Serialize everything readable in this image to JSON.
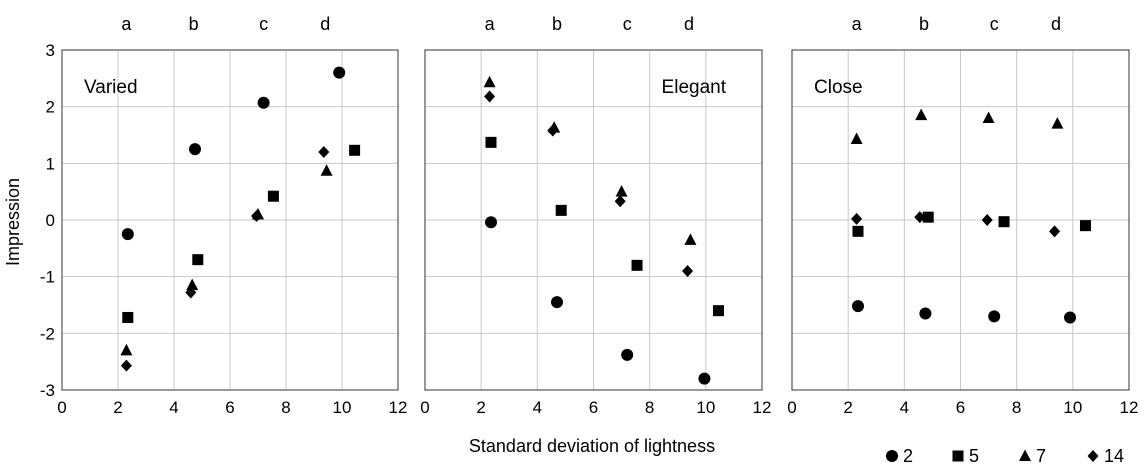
{
  "figure": {
    "ylabel": "Impression",
    "xlabel": "Standard deviation of lightness",
    "legend": [
      {
        "symbol": "circle",
        "label": "2"
      },
      {
        "symbol": "square",
        "label": "5"
      },
      {
        "symbol": "triangle",
        "label": "7"
      },
      {
        "symbol": "diamond",
        "label": "14"
      }
    ],
    "colors": {
      "marker": "#000000",
      "grid": "#c8c8c8",
      "axis": "#555555"
    }
  },
  "chart_data": [
    {
      "type": "scatter",
      "panel_label": "Varied",
      "label_position": "top-left",
      "xlim": [
        0,
        12
      ],
      "ylim": [
        -3,
        3
      ],
      "xticks": [
        "0",
        "2",
        "4",
        "6",
        "8",
        "10",
        "12"
      ],
      "yticks": [
        "-3",
        "-2",
        "-1",
        "0",
        "1",
        "2",
        "3"
      ],
      "group_labels": [
        {
          "label": "a",
          "x": 2.3
        },
        {
          "label": "b",
          "x": 4.7
        },
        {
          "label": "c",
          "x": 7.2
        },
        {
          "label": "d",
          "x": 9.4
        }
      ],
      "grid": true,
      "series": [
        {
          "name": "2",
          "marker": "circle",
          "points": [
            [
              2.35,
              -0.25
            ],
            [
              4.75,
              1.25
            ],
            [
              7.2,
              2.07
            ],
            [
              9.9,
              2.6
            ]
          ]
        },
        {
          "name": "5",
          "marker": "square",
          "points": [
            [
              2.35,
              -1.72
            ],
            [
              4.85,
              -0.7
            ],
            [
              7.55,
              0.42
            ],
            [
              10.45,
              1.23
            ]
          ]
        },
        {
          "name": "7",
          "marker": "triangle",
          "points": [
            [
              2.3,
              -2.3
            ],
            [
              4.65,
              -1.15
            ],
            [
              7.0,
              0.1
            ],
            [
              9.45,
              0.87
            ]
          ]
        },
        {
          "name": "14",
          "marker": "diamond",
          "points": [
            [
              2.3,
              -2.57
            ],
            [
              4.6,
              -1.28
            ],
            [
              6.95,
              0.07
            ],
            [
              9.35,
              1.2
            ]
          ]
        }
      ]
    },
    {
      "type": "scatter",
      "panel_label": "Elegant",
      "label_position": "top-right",
      "xlim": [
        0,
        12
      ],
      "ylim": [
        -3,
        3
      ],
      "xticks": [
        "0",
        "2",
        "4",
        "6",
        "8",
        "10",
        "12"
      ],
      "yticks": [],
      "group_labels": [
        {
          "label": "a",
          "x": 2.3
        },
        {
          "label": "b",
          "x": 4.7
        },
        {
          "label": "c",
          "x": 7.2
        },
        {
          "label": "d",
          "x": 9.4
        }
      ],
      "grid": true,
      "series": [
        {
          "name": "2",
          "marker": "circle",
          "points": [
            [
              2.35,
              -0.04
            ],
            [
              4.7,
              -1.45
            ],
            [
              7.2,
              -2.38
            ],
            [
              9.95,
              -2.8
            ]
          ]
        },
        {
          "name": "5",
          "marker": "square",
          "points": [
            [
              2.35,
              1.37
            ],
            [
              4.85,
              0.17
            ],
            [
              7.55,
              -0.8
            ],
            [
              10.45,
              -1.6
            ]
          ]
        },
        {
          "name": "7",
          "marker": "triangle",
          "points": [
            [
              2.3,
              2.43
            ],
            [
              4.6,
              1.63
            ],
            [
              7.0,
              0.5
            ],
            [
              9.45,
              -0.35
            ]
          ]
        },
        {
          "name": "14",
          "marker": "diamond",
          "points": [
            [
              2.3,
              2.18
            ],
            [
              4.55,
              1.58
            ],
            [
              6.95,
              0.33
            ],
            [
              9.35,
              -0.9
            ]
          ]
        }
      ]
    },
    {
      "type": "scatter",
      "panel_label": "Close",
      "label_position": "top-left",
      "xlim": [
        0,
        12
      ],
      "ylim": [
        -3,
        3
      ],
      "xticks": [
        "0",
        "2",
        "4",
        "6",
        "8",
        "10",
        "12"
      ],
      "yticks": [],
      "group_labels": [
        {
          "label": "a",
          "x": 2.3
        },
        {
          "label": "b",
          "x": 4.7
        },
        {
          "label": "c",
          "x": 7.2
        },
        {
          "label": "d",
          "x": 9.4
        }
      ],
      "grid": true,
      "series": [
        {
          "name": "2",
          "marker": "circle",
          "points": [
            [
              2.35,
              -1.52
            ],
            [
              4.75,
              -1.65
            ],
            [
              7.2,
              -1.7
            ],
            [
              9.9,
              -1.72
            ]
          ]
        },
        {
          "name": "5",
          "marker": "square",
          "points": [
            [
              2.35,
              -0.2
            ],
            [
              4.85,
              0.05
            ],
            [
              7.55,
              -0.03
            ],
            [
              10.45,
              -0.1
            ]
          ]
        },
        {
          "name": "7",
          "marker": "triangle",
          "points": [
            [
              2.3,
              1.43
            ],
            [
              4.6,
              1.85
            ],
            [
              7.0,
              1.8
            ],
            [
              9.45,
              1.7
            ]
          ]
        },
        {
          "name": "14",
          "marker": "diamond",
          "points": [
            [
              2.3,
              0.02
            ],
            [
              4.55,
              0.05
            ],
            [
              6.95,
              0.0
            ],
            [
              9.35,
              -0.2
            ]
          ]
        }
      ]
    }
  ]
}
